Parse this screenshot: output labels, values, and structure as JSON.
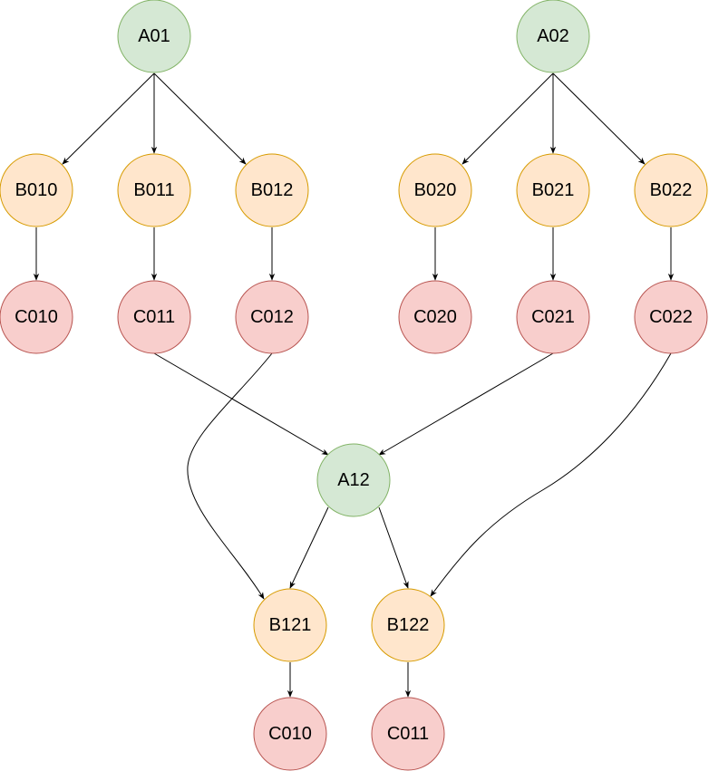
{
  "colors": {
    "green_fill": "#d5e8d4",
    "green_stroke": "#82b366",
    "orange_fill": "#ffe6cc",
    "orange_stroke": "#d79b00",
    "red_fill": "#f8cecc",
    "red_stroke": "#b85450",
    "edge": "#000000"
  },
  "nodes": {
    "a01": {
      "label": "A01",
      "kind": "green"
    },
    "a02": {
      "label": "A02",
      "kind": "green"
    },
    "b010": {
      "label": "B010",
      "kind": "orange"
    },
    "b011": {
      "label": "B011",
      "kind": "orange"
    },
    "b012": {
      "label": "B012",
      "kind": "orange"
    },
    "b020": {
      "label": "B020",
      "kind": "orange"
    },
    "b021": {
      "label": "B021",
      "kind": "orange"
    },
    "b022": {
      "label": "B022",
      "kind": "orange"
    },
    "c010": {
      "label": "C010",
      "kind": "red"
    },
    "c011": {
      "label": "C011",
      "kind": "red"
    },
    "c012": {
      "label": "C012",
      "kind": "red"
    },
    "c020": {
      "label": "C020",
      "kind": "red"
    },
    "c021": {
      "label": "C021",
      "kind": "red"
    },
    "c022": {
      "label": "C022",
      "kind": "red"
    },
    "a12": {
      "label": "A12",
      "kind": "green"
    },
    "b121": {
      "label": "B121",
      "kind": "orange"
    },
    "b122": {
      "label": "B122",
      "kind": "orange"
    },
    "c010b": {
      "label": "C010",
      "kind": "red"
    },
    "c011b": {
      "label": "C011",
      "kind": "red"
    }
  },
  "edges": [
    {
      "from": "a01",
      "to": "b010"
    },
    {
      "from": "a01",
      "to": "b011"
    },
    {
      "from": "a01",
      "to": "b012"
    },
    {
      "from": "a02",
      "to": "b020"
    },
    {
      "from": "a02",
      "to": "b021"
    },
    {
      "from": "a02",
      "to": "b022"
    },
    {
      "from": "b010",
      "to": "c010"
    },
    {
      "from": "b011",
      "to": "c011"
    },
    {
      "from": "b012",
      "to": "c012"
    },
    {
      "from": "b020",
      "to": "c020"
    },
    {
      "from": "b021",
      "to": "c021"
    },
    {
      "from": "b022",
      "to": "c022"
    },
    {
      "from": "c011",
      "to": "a12"
    },
    {
      "from": "c021",
      "to": "a12"
    },
    {
      "from": "c012",
      "to": "b121"
    },
    {
      "from": "c022",
      "to": "b122"
    },
    {
      "from": "a12",
      "to": "b121"
    },
    {
      "from": "a12",
      "to": "b122"
    },
    {
      "from": "b121",
      "to": "c010b"
    },
    {
      "from": "b122",
      "to": "c011b"
    }
  ]
}
